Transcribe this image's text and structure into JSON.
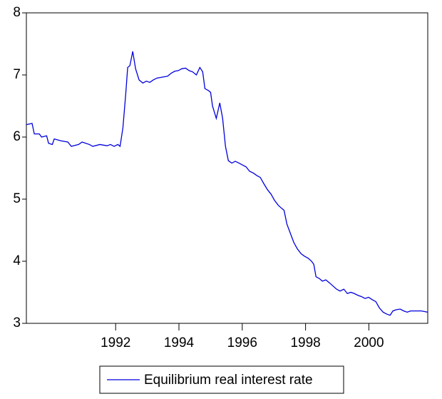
{
  "chart_data": {
    "type": "line",
    "series": [
      {
        "name": "Equilibrium real interest rate",
        "color": "#0000dd",
        "x": [
          1989.18,
          1989.36,
          1989.43,
          1989.59,
          1989.66,
          1989.82,
          1989.88,
          1990.0,
          1990.06,
          1990.27,
          1990.49,
          1990.6,
          1990.83,
          1990.94,
          1991.17,
          1991.28,
          1991.5,
          1991.73,
          1991.84,
          1991.95,
          1992.07,
          1992.14,
          1992.23,
          1992.32,
          1992.38,
          1992.45,
          1992.54,
          1992.63,
          1992.74,
          1992.86,
          1992.97,
          1993.08,
          1993.19,
          1993.31,
          1993.42,
          1993.53,
          1993.64,
          1993.76,
          1993.87,
          1993.98,
          1994.09,
          1994.21,
          1994.32,
          1994.43,
          1994.55,
          1994.66,
          1994.75,
          1994.82,
          1994.93,
          1995.0,
          1995.06,
          1995.18,
          1995.29,
          1995.38,
          1995.47,
          1995.56,
          1995.67,
          1995.78,
          1995.9,
          1996.01,
          1996.12,
          1996.23,
          1996.35,
          1996.46,
          1996.57,
          1996.68,
          1996.8,
          1996.91,
          1997.02,
          1997.14,
          1997.25,
          1997.32,
          1997.41,
          1997.52,
          1997.63,
          1997.74,
          1997.86,
          1997.97,
          1998.08,
          1998.19,
          1998.26,
          1998.33,
          1998.44,
          1998.53,
          1998.64,
          1998.76,
          1998.87,
          1998.98,
          1999.09,
          1999.21,
          1999.32,
          1999.43,
          1999.54,
          1999.66,
          1999.77,
          1999.88,
          1999.99,
          2000.11,
          2000.22,
          2000.33,
          2000.45,
          2000.56,
          2000.67,
          2000.76,
          2000.87,
          2000.99,
          2001.1,
          2001.21,
          2001.32,
          2001.44,
          2001.55,
          2001.66,
          2001.86
        ],
        "values": [
          6.2,
          6.22,
          6.05,
          6.05,
          6.0,
          6.02,
          5.9,
          5.88,
          5.97,
          5.94,
          5.92,
          5.85,
          5.88,
          5.92,
          5.88,
          5.85,
          5.88,
          5.86,
          5.88,
          5.85,
          5.88,
          5.85,
          6.15,
          6.7,
          7.12,
          7.15,
          7.38,
          7.1,
          6.92,
          6.87,
          6.9,
          6.88,
          6.92,
          6.95,
          6.96,
          6.97,
          6.98,
          7.03,
          7.06,
          7.07,
          7.1,
          7.11,
          7.07,
          7.05,
          7.0,
          7.12,
          7.05,
          6.78,
          6.75,
          6.72,
          6.5,
          6.3,
          6.55,
          6.3,
          5.85,
          5.62,
          5.58,
          5.61,
          5.58,
          5.55,
          5.52,
          5.45,
          5.42,
          5.38,
          5.35,
          5.25,
          5.15,
          5.08,
          4.98,
          4.9,
          4.85,
          4.82,
          4.6,
          4.45,
          4.3,
          4.2,
          4.12,
          4.08,
          4.05,
          4.0,
          3.95,
          3.75,
          3.72,
          3.68,
          3.7,
          3.65,
          3.6,
          3.55,
          3.52,
          3.55,
          3.48,
          3.5,
          3.48,
          3.45,
          3.43,
          3.4,
          3.42,
          3.38,
          3.35,
          3.25,
          3.18,
          3.15,
          3.13,
          3.2,
          3.22,
          3.23,
          3.2,
          3.18,
          3.2,
          3.2,
          3.2,
          3.2,
          3.18
        ]
      }
    ],
    "xlim": [
      1989.18,
      2001.86
    ],
    "xticks": [
      1992,
      1994,
      1996,
      1998,
      2000
    ],
    "ylim": [
      3,
      8
    ],
    "yticks": [
      3,
      4,
      5,
      6,
      7,
      8
    ],
    "grid": false
  }
}
